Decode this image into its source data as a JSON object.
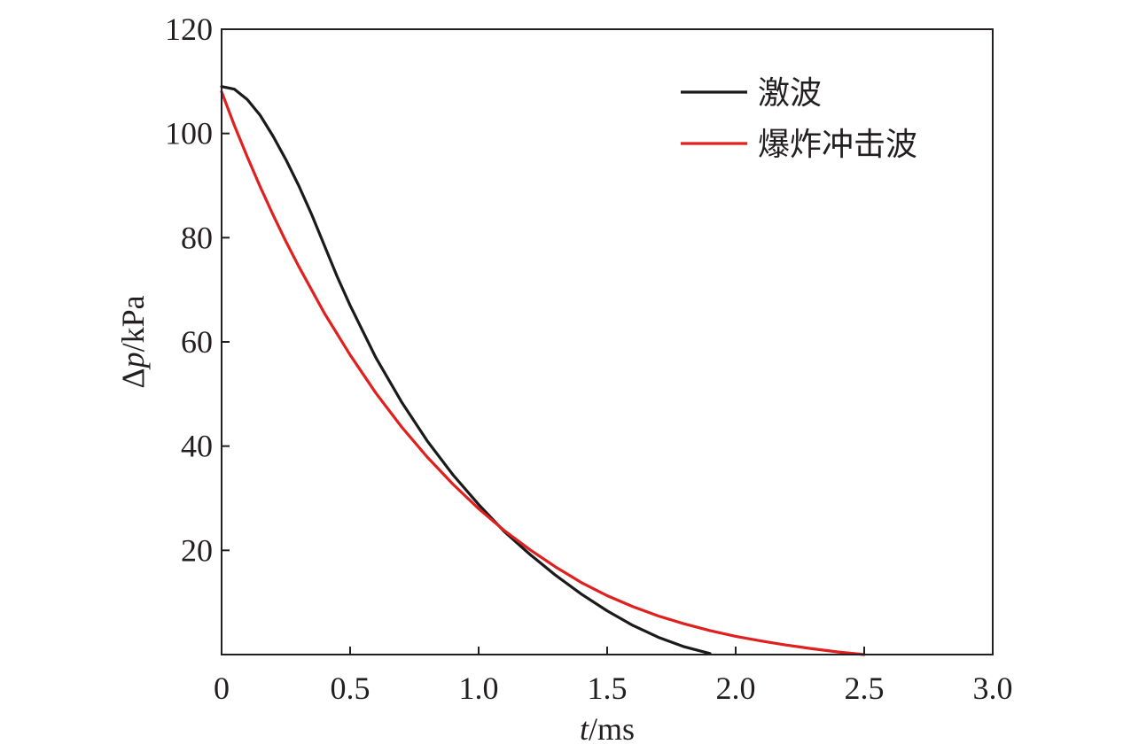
{
  "chart_data": {
    "type": "line",
    "title": "",
    "xlabel_italic": "t",
    "xlabel_unit": "/ms",
    "ylabel_prefix": "Δ",
    "ylabel_italic": "p",
    "ylabel_unit": "/kPa",
    "xlim": [
      0,
      3.0
    ],
    "ylim": [
      0,
      120
    ],
    "xticks": [
      {
        "value": 0,
        "label": "0"
      },
      {
        "value": 0.5,
        "label": "0.5"
      },
      {
        "value": 1.0,
        "label": "1.0"
      },
      {
        "value": 1.5,
        "label": "1.5"
      },
      {
        "value": 2.0,
        "label": "2.0"
      },
      {
        "value": 2.5,
        "label": "2.5"
      },
      {
        "value": 3.0,
        "label": "3.0"
      }
    ],
    "yticks": [
      {
        "value": 20,
        "label": "20"
      },
      {
        "value": 40,
        "label": "40"
      },
      {
        "value": 60,
        "label": "60"
      },
      {
        "value": 80,
        "label": "80"
      },
      {
        "value": 100,
        "label": "100"
      },
      {
        "value": 120,
        "label": "120"
      }
    ],
    "grid": false,
    "legend_position": "top-right",
    "series": [
      {
        "name": "激波",
        "color": "#1a1a1a",
        "points": [
          [
            0,
            109
          ],
          [
            0.05,
            108.5
          ],
          [
            0.1,
            106.5
          ],
          [
            0.15,
            103.5
          ],
          [
            0.2,
            99.5
          ],
          [
            0.25,
            95
          ],
          [
            0.3,
            90
          ],
          [
            0.35,
            84.5
          ],
          [
            0.4,
            78.5
          ],
          [
            0.45,
            72.5
          ],
          [
            0.5,
            67
          ],
          [
            0.6,
            57
          ],
          [
            0.7,
            48.5
          ],
          [
            0.8,
            41
          ],
          [
            0.9,
            34.5
          ],
          [
            1.0,
            28.8
          ],
          [
            1.1,
            23.6
          ],
          [
            1.2,
            19.2
          ],
          [
            1.3,
            15.2
          ],
          [
            1.4,
            11.6
          ],
          [
            1.5,
            8.4
          ],
          [
            1.6,
            5.6
          ],
          [
            1.7,
            3.3
          ],
          [
            1.8,
            1.5
          ],
          [
            1.9,
            0.2
          ]
        ]
      },
      {
        "name": "爆炸冲击波",
        "color": "#e0201f",
        "points": [
          [
            0,
            108
          ],
          [
            0.05,
            101.5
          ],
          [
            0.1,
            95.5
          ],
          [
            0.15,
            89.8
          ],
          [
            0.2,
            84.4
          ],
          [
            0.25,
            79.3
          ],
          [
            0.3,
            74.5
          ],
          [
            0.4,
            65.5
          ],
          [
            0.5,
            57.5
          ],
          [
            0.6,
            50.2
          ],
          [
            0.7,
            43.7
          ],
          [
            0.8,
            37.9
          ],
          [
            0.9,
            32.7
          ],
          [
            1.0,
            28
          ],
          [
            1.1,
            23.8
          ],
          [
            1.2,
            20.1
          ],
          [
            1.3,
            16.8
          ],
          [
            1.4,
            13.8
          ],
          [
            1.5,
            11.3
          ],
          [
            1.6,
            9.2
          ],
          [
            1.7,
            7.4
          ],
          [
            1.8,
            5.9
          ],
          [
            1.9,
            4.6
          ],
          [
            2.0,
            3.5
          ],
          [
            2.1,
            2.6
          ],
          [
            2.2,
            1.8
          ],
          [
            2.3,
            1.1
          ],
          [
            2.4,
            0.5
          ],
          [
            2.5,
            0
          ]
        ]
      }
    ]
  }
}
